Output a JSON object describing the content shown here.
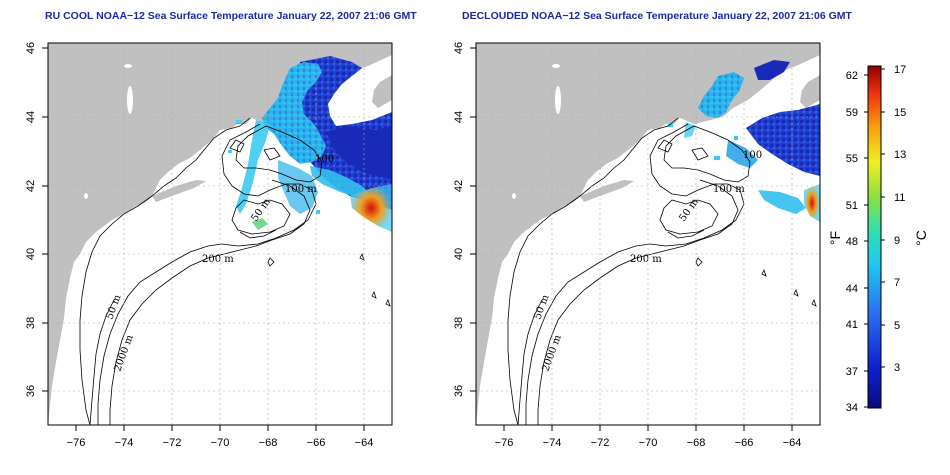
{
  "panels": [
    {
      "title": "RU COOL NOAA−12 Sea Surface Temperature January 22, 2007 21:06 GMT",
      "contour_labels": [
        "100",
        "100 m",
        "50 m",
        "200 m",
        "50 m",
        "2000 m"
      ]
    },
    {
      "title": "DECLOUDED NOAA−12 Sea Surface Temperature January 22, 2007 21:06 GMT",
      "contour_labels": [
        "100",
        "100 m",
        "50 m",
        "200 m",
        "50 m",
        "2000 m"
      ]
    }
  ],
  "axes": {
    "x_ticks": [
      "−76",
      "−74",
      "−72",
      "−70",
      "−68",
      "−66",
      "−64"
    ],
    "y_ticks": [
      "36",
      "38",
      "40",
      "42",
      "44",
      "46"
    ]
  },
  "colorbar": {
    "unit_left": "°F",
    "unit_right": "°C",
    "f_ticks": [
      "62",
      "59",
      "55",
      "51",
      "48",
      "44",
      "41",
      "37",
      "34"
    ],
    "c_ticks": [
      "17",
      "15",
      "13",
      "11",
      "9",
      "7",
      "5",
      "3"
    ]
  },
  "colors": {
    "land": "#c0c0c0",
    "title": "#1a2aa8",
    "cold": "#0a1aa0",
    "cyan": "#20c8f0",
    "warm": "#e02010"
  }
}
